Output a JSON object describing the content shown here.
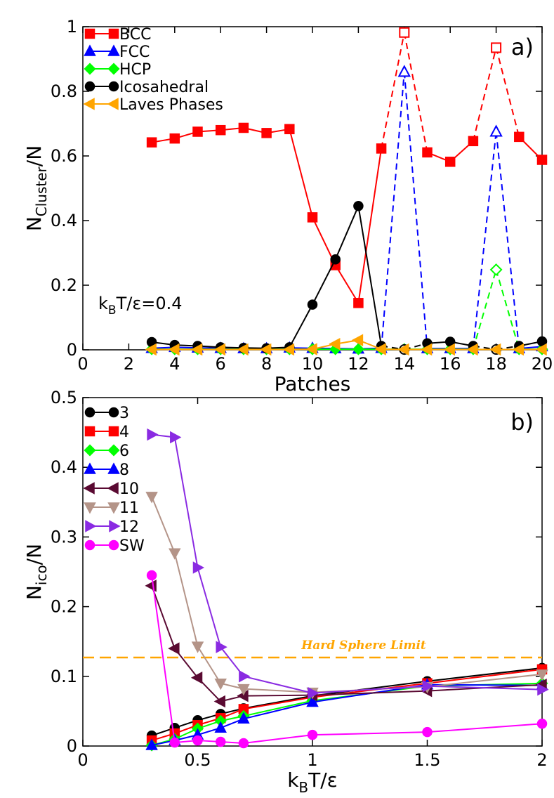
{
  "chart_data": [
    {
      "panel": "a)",
      "type": "line",
      "xlabel": "Patches",
      "ylabel_main": "N",
      "ylabel_sub": "Cluster",
      "ylabel_tail": "/N",
      "xlim": [
        0,
        20
      ],
      "ylim": [
        0,
        1
      ],
      "xticks": [
        "0",
        "2",
        "4",
        "6",
        "8",
        "10",
        "12",
        "14",
        "16",
        "18",
        "20"
      ],
      "yticks": [
        "0",
        "0.2",
        "0.4",
        "0.6",
        "0.8",
        "1"
      ],
      "annotation": {
        "main": "k",
        "sub": "B",
        "tail": "T/ε=0.4"
      },
      "legend_position": "top-left",
      "series": [
        {
          "name": "BCC",
          "color": "#ff0000",
          "marker": "square",
          "x": [
            3,
            4,
            5,
            6,
            7,
            8,
            9,
            10,
            11,
            12,
            13,
            14,
            15,
            16,
            17,
            18,
            19,
            20
          ],
          "y": [
            0.642,
            0.654,
            0.675,
            0.68,
            0.687,
            0.671,
            0.683,
            0.41,
            0.262,
            0.145,
            0.623,
            0.982,
            0.611,
            0.582,
            0.646,
            0.935,
            0.659,
            0.588
          ],
          "hollow_x": [
            14,
            18
          ]
        },
        {
          "name": "FCC",
          "color": "#0000ff",
          "marker": "triangle-up",
          "x": [
            3,
            4,
            5,
            6,
            7,
            8,
            9,
            10,
            11,
            12,
            13,
            14,
            15,
            16,
            17,
            18,
            19,
            20
          ],
          "y": [
            0.005,
            0.008,
            0.006,
            0.005,
            0.004,
            0.004,
            0.006,
            0.005,
            0.004,
            0.003,
            0.005,
            0.86,
            0.004,
            0.004,
            0.004,
            0.675,
            0.004,
            0.01
          ],
          "hollow_x": [
            14,
            18
          ]
        },
        {
          "name": "HCP",
          "color": "#00ff00",
          "marker": "diamond",
          "x": [
            3,
            4,
            5,
            6,
            7,
            8,
            9,
            10,
            11,
            12,
            13,
            14,
            15,
            16,
            17,
            18,
            19,
            20
          ],
          "y": [
            0.002,
            0.002,
            0.002,
            0.002,
            0.002,
            0.002,
            0.002,
            0.002,
            0.002,
            0.002,
            0.002,
            0.002,
            0.002,
            0.002,
            0.002,
            0.248,
            0.002,
            0.002
          ],
          "hollow_x": [
            18
          ]
        },
        {
          "name": "Icosahedral",
          "color": "#000000",
          "marker": "circle",
          "x": [
            3,
            4,
            5,
            6,
            7,
            8,
            9,
            10,
            11,
            12,
            13,
            14,
            15,
            16,
            17,
            18,
            19,
            20
          ],
          "y": [
            0.024,
            0.015,
            0.012,
            0.008,
            0.006,
            0.005,
            0.008,
            0.14,
            0.28,
            0.445,
            0.012,
            0.001,
            0.02,
            0.025,
            0.012,
            0.001,
            0.012,
            0.026
          ],
          "hollow_x": [
            14,
            18
          ]
        },
        {
          "name": "Laves Phases",
          "color": "#ffa500",
          "marker": "triangle-left",
          "x": [
            3,
            4,
            5,
            6,
            7,
            8,
            9,
            10,
            11,
            12,
            13,
            14,
            15,
            16,
            17,
            18,
            19,
            20
          ],
          "y": [
            0.001,
            0.001,
            0.001,
            0.001,
            0.001,
            0.001,
            0.001,
            0.002,
            0.018,
            0.03,
            0.002,
            0.001,
            0.001,
            0.001,
            0.001,
            0.001,
            0.001,
            0.001
          ],
          "hollow_x": []
        }
      ]
    },
    {
      "panel": "b)",
      "type": "line",
      "xlabel_main": "k",
      "xlabel_sub": "B",
      "xlabel_tail": "T/ε",
      "ylabel_main": "N",
      "ylabel_sub": "ico",
      "ylabel_tail": "/N",
      "xlim": [
        0,
        2
      ],
      "ylim": [
        0,
        0.5
      ],
      "xticks": [
        "0",
        "0.5",
        "1",
        "1.5",
        "2"
      ],
      "yticks": [
        "0",
        "0.1",
        "0.2",
        "0.3",
        "0.4",
        "0.5"
      ],
      "reference_line": {
        "label": "Hard Sphere Limit",
        "y": 0.127,
        "color": "#ffa500"
      },
      "legend_position": "top-left",
      "series": [
        {
          "name": "3",
          "color": "#000000",
          "marker": "circle",
          "x": [
            0.3,
            0.4,
            0.5,
            0.6,
            0.7,
            1,
            1.5,
            2
          ],
          "y": [
            0.015,
            0.026,
            0.037,
            0.046,
            0.054,
            0.072,
            0.093,
            0.112
          ]
        },
        {
          "name": "4",
          "color": "#ff0000",
          "marker": "square",
          "x": [
            0.3,
            0.4,
            0.5,
            0.6,
            0.7,
            1,
            1.5,
            2
          ],
          "y": [
            0.008,
            0.018,
            0.03,
            0.04,
            0.053,
            0.07,
            0.09,
            0.11
          ]
        },
        {
          "name": "6",
          "color": "#00ff00",
          "marker": "diamond",
          "x": [
            0.3,
            0.4,
            0.5,
            0.6,
            0.7,
            1,
            1.5,
            2
          ],
          "y": [
            0.001,
            0.01,
            0.025,
            0.036,
            0.043,
            0.065,
            0.086,
            0.09
          ]
        },
        {
          "name": "8",
          "color": "#0000ff",
          "marker": "triangle-up",
          "x": [
            0.3,
            0.4,
            0.5,
            0.6,
            0.7,
            1,
            1.5,
            2
          ],
          "y": [
            0.001,
            0.008,
            0.016,
            0.026,
            0.039,
            0.063,
            0.088,
            0.087
          ]
        },
        {
          "name": "10",
          "color": "#5a0a32",
          "marker": "triangle-left",
          "x": [
            0.3,
            0.4,
            0.5,
            0.6,
            0.7,
            1,
            1.5,
            2
          ],
          "y": [
            0.23,
            0.14,
            0.098,
            0.064,
            0.072,
            0.073,
            0.079,
            0.088
          ]
        },
        {
          "name": "11",
          "color": "#b49488",
          "marker": "triangle-down",
          "x": [
            0.3,
            0.4,
            0.5,
            0.6,
            0.7,
            1,
            1.5,
            2
          ],
          "y": [
            0.358,
            0.277,
            0.143,
            0.09,
            0.082,
            0.077,
            0.085,
            0.103
          ]
        },
        {
          "name": "12",
          "color": "#8a2be2",
          "marker": "triangle-right",
          "x": [
            0.3,
            0.4,
            0.5,
            0.6,
            0.7,
            1,
            1.5,
            2
          ],
          "y": [
            0.447,
            0.443,
            0.256,
            0.142,
            0.1,
            0.076,
            0.086,
            0.081
          ]
        },
        {
          "name": "SW",
          "color": "#ff00ff",
          "marker": "circle",
          "x": [
            0.3,
            0.4,
            0.5,
            0.6,
            0.7,
            1,
            1.5,
            2
          ],
          "y": [
            0.245,
            0.005,
            0.008,
            0.006,
            0.004,
            0.016,
            0.02,
            0.032
          ]
        }
      ]
    }
  ]
}
